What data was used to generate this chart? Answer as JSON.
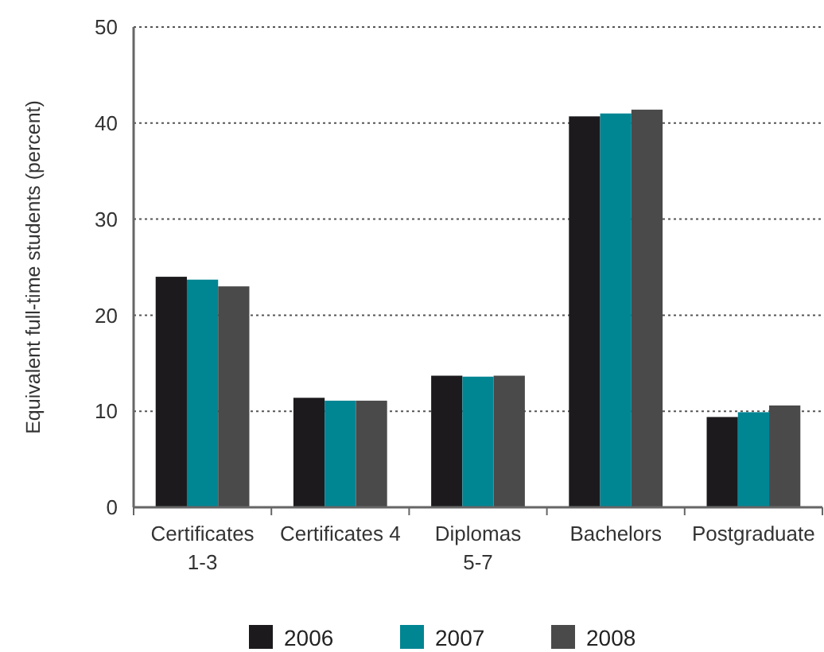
{
  "chart_data": {
    "type": "bar",
    "ylabel": "Equivalent full-time students (percent)",
    "categories": [
      "Certificates\n1-3",
      "Certificates 4",
      "Diplomas\n5-7",
      "Bachelors",
      "Postgraduate"
    ],
    "series": [
      {
        "name": "2006",
        "color": "#1c1a1d",
        "values": [
          24.0,
          11.4,
          13.7,
          40.7,
          9.4
        ]
      },
      {
        "name": "2007",
        "color": "#008593",
        "values": [
          23.7,
          11.1,
          13.6,
          41.0,
          9.9
        ]
      },
      {
        "name": "2008",
        "color": "#4a4a4a",
        "values": [
          23.0,
          11.1,
          13.7,
          41.4,
          10.6
        ]
      }
    ],
    "ylim": [
      0,
      50
    ],
    "yticks": [
      0,
      10,
      20,
      30,
      40,
      50
    ],
    "grid": "y",
    "legend": "bottom"
  }
}
